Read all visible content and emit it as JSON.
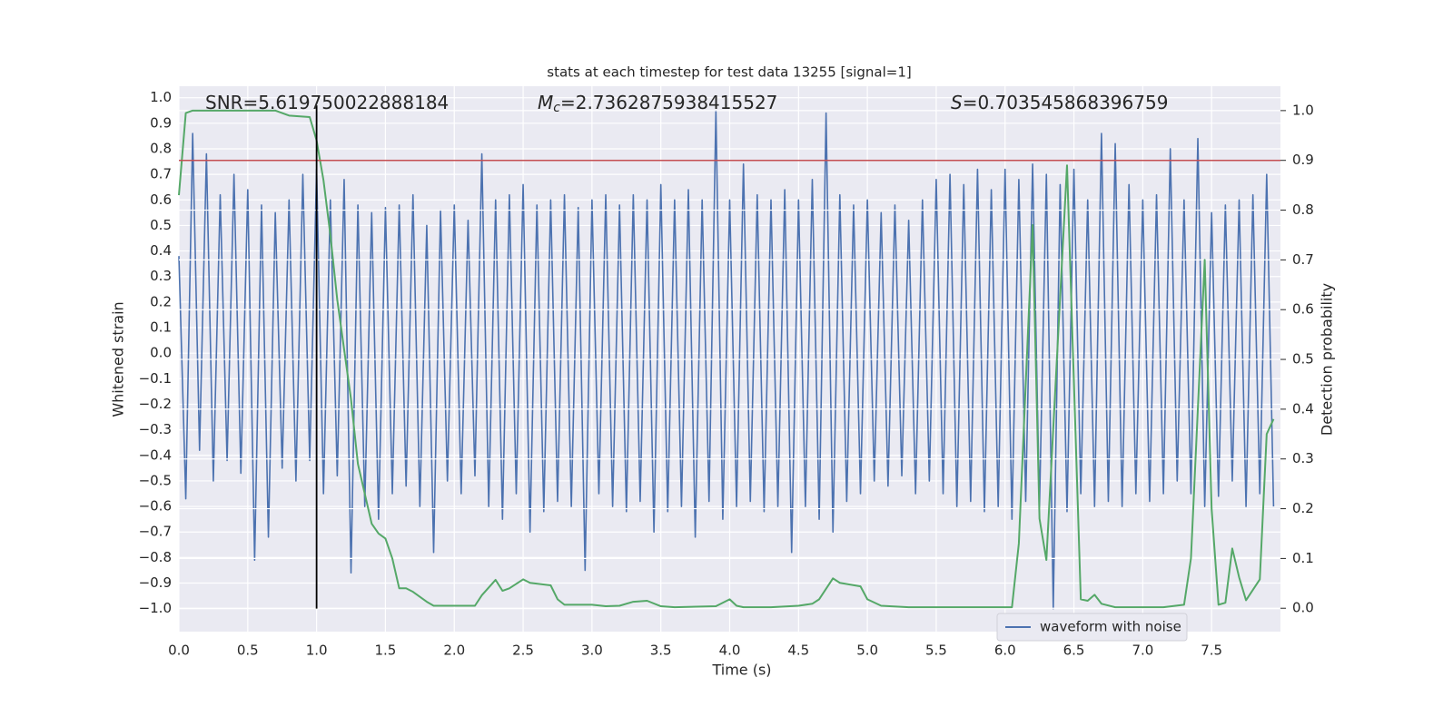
{
  "chart_data": {
    "type": "line",
    "title": "stats at each timestep for test data 13255 [signal=1]",
    "x_label": "Time (s)",
    "y_label": "Whitened strain",
    "y2_label": "Detection probability",
    "annotations": [
      {
        "rest": "SNR=5.619750022888184"
      },
      {
        "var": "M",
        "sub": "c",
        "rest": "=2.7362875938415527"
      },
      {
        "var": "S",
        "rest": "=0.703545868396759"
      }
    ],
    "xlim": [
      0,
      8
    ],
    "ylim": [
      -1.09,
      1.045
    ],
    "y2lim": [
      -0.047,
      1.049
    ],
    "xticks": [
      {
        "value": 0,
        "label": "0.0"
      },
      {
        "value": 0.5,
        "label": "0.5"
      },
      {
        "value": 1,
        "label": "1.0"
      },
      {
        "value": 1.5,
        "label": "1.5"
      },
      {
        "value": 2,
        "label": "2.0"
      },
      {
        "value": 2.5,
        "label": "2.5"
      },
      {
        "value": 3,
        "label": "3.0"
      },
      {
        "value": 3.5,
        "label": "3.5"
      },
      {
        "value": 4,
        "label": "4.0"
      },
      {
        "value": 4.5,
        "label": "4.5"
      },
      {
        "value": 5,
        "label": "5.0"
      },
      {
        "value": 5.5,
        "label": "5.5"
      },
      {
        "value": 6,
        "label": "6.0"
      },
      {
        "value": 6.5,
        "label": "6.5"
      },
      {
        "value": 7,
        "label": "7.0"
      },
      {
        "value": 7.5,
        "label": "7.5"
      }
    ],
    "yticks": [
      {
        "value": -1,
        "label": "−1.0"
      },
      {
        "value": -0.9,
        "label": "−0.9"
      },
      {
        "value": -0.8,
        "label": "−0.8"
      },
      {
        "value": -0.7,
        "label": "−0.7"
      },
      {
        "value": -0.6,
        "label": "−0.6"
      },
      {
        "value": -0.5,
        "label": "−0.5"
      },
      {
        "value": -0.4,
        "label": "−0.4"
      },
      {
        "value": -0.3,
        "label": "−0.3"
      },
      {
        "value": -0.2,
        "label": "−0.2"
      },
      {
        "value": -0.1,
        "label": "−0.1"
      },
      {
        "value": 0,
        "label": "0.0"
      },
      {
        "value": 0.1,
        "label": "0.1"
      },
      {
        "value": 0.2,
        "label": "0.2"
      },
      {
        "value": 0.3,
        "label": "0.3"
      },
      {
        "value": 0.4,
        "label": "0.4"
      },
      {
        "value": 0.5,
        "label": "0.5"
      },
      {
        "value": 0.6,
        "label": "0.6"
      },
      {
        "value": 0.7,
        "label": "0.7"
      },
      {
        "value": 0.8,
        "label": "0.8"
      },
      {
        "value": 0.9,
        "label": "0.9"
      },
      {
        "value": 1,
        "label": "1.0"
      }
    ],
    "y2ticks": [
      {
        "value": 0,
        "label": "0.0"
      },
      {
        "value": 0.1,
        "label": "0.1"
      },
      {
        "value": 0.2,
        "label": "0.2"
      },
      {
        "value": 0.3,
        "label": "0.3"
      },
      {
        "value": 0.4,
        "label": "0.4"
      },
      {
        "value": 0.5,
        "label": "0.5"
      },
      {
        "value": 0.6,
        "label": "0.6"
      },
      {
        "value": 0.7,
        "label": "0.7"
      },
      {
        "value": 0.8,
        "label": "0.8"
      },
      {
        "value": 0.9,
        "label": "0.9"
      },
      {
        "value": 1,
        "label": "1.0"
      }
    ],
    "grid": true,
    "legend": "lower right",
    "series": [
      {
        "name": "waveform with noise",
        "color": "#4c72b0",
        "x": [
          0,
          0.05,
          0.1,
          0.15,
          0.2,
          0.25,
          0.3,
          0.35,
          0.4,
          0.45,
          0.5,
          0.55,
          0.6,
          0.65,
          0.7,
          0.75,
          0.8,
          0.85,
          0.9,
          0.95,
          1,
          1.05,
          1.1,
          1.15,
          1.2,
          1.25,
          1.3,
          1.35,
          1.4,
          1.45,
          1.5,
          1.55,
          1.6,
          1.65,
          1.7,
          1.75,
          1.8,
          1.85,
          1.9,
          1.95,
          2,
          2.05,
          2.1,
          2.15,
          2.2,
          2.25,
          2.3,
          2.35,
          2.4,
          2.45,
          2.5,
          2.55,
          2.6,
          2.65,
          2.7,
          2.75,
          2.8,
          2.85,
          2.9,
          2.95,
          3,
          3.05,
          3.1,
          3.15,
          3.2,
          3.25,
          3.3,
          3.35,
          3.4,
          3.45,
          3.5,
          3.55,
          3.6,
          3.65,
          3.7,
          3.75,
          3.8,
          3.85,
          3.9,
          3.95,
          4,
          4.05,
          4.1,
          4.15,
          4.2,
          4.25,
          4.3,
          4.35,
          4.4,
          4.45,
          4.5,
          4.55,
          4.6,
          4.65,
          4.7,
          4.75,
          4.8,
          4.85,
          4.9,
          4.95,
          5,
          5.05,
          5.1,
          5.15,
          5.2,
          5.25,
          5.3,
          5.35,
          5.4,
          5.45,
          5.5,
          5.55,
          5.6,
          5.65,
          5.7,
          5.75,
          5.8,
          5.85,
          5.9,
          5.95,
          6,
          6.05,
          6.1,
          6.15,
          6.2,
          6.25,
          6.3,
          6.35,
          6.4,
          6.45,
          6.5,
          6.55,
          6.6,
          6.65,
          6.7,
          6.75,
          6.8,
          6.85,
          6.9,
          6.95,
          7,
          7.05,
          7.1,
          7.15,
          7.2,
          7.25,
          7.3,
          7.35,
          7.4,
          7.45,
          7.5,
          7.55,
          7.6,
          7.65,
          7.7,
          7.75,
          7.8,
          7.85,
          7.9,
          7.95
        ],
        "values": [
          0.38,
          -0.57,
          0.86,
          -0.38,
          0.78,
          -0.5,
          0.62,
          -0.42,
          0.7,
          -0.47,
          0.64,
          -0.81,
          0.58,
          -0.72,
          0.55,
          -0.45,
          0.6,
          -0.5,
          0.7,
          -0.42,
          0.72,
          -0.55,
          0.6,
          -0.48,
          0.68,
          -0.86,
          0.58,
          -0.6,
          0.55,
          -0.65,
          0.57,
          -0.55,
          0.58,
          -0.52,
          0.62,
          -0.6,
          0.5,
          -0.78,
          0.56,
          -0.5,
          0.58,
          -0.55,
          0.52,
          -0.48,
          0.78,
          -0.6,
          0.6,
          -0.65,
          0.62,
          -0.55,
          0.66,
          -0.7,
          0.58,
          -0.62,
          0.6,
          -0.58,
          0.62,
          -0.6,
          0.57,
          -0.85,
          0.6,
          -0.55,
          0.62,
          -0.6,
          0.58,
          -0.62,
          0.62,
          -0.58,
          0.6,
          -0.7,
          0.66,
          -0.62,
          0.6,
          -0.6,
          0.64,
          -0.72,
          0.6,
          -0.58,
          0.95,
          -0.65,
          0.6,
          -0.6,
          0.74,
          -0.58,
          0.62,
          -0.62,
          0.6,
          -0.6,
          0.64,
          -0.78,
          0.6,
          -0.6,
          0.68,
          -0.65,
          0.94,
          -0.7,
          0.62,
          -0.58,
          0.58,
          -0.55,
          0.6,
          -0.5,
          0.55,
          -0.52,
          0.58,
          -0.48,
          0.52,
          -0.55,
          0.6,
          -0.5,
          0.68,
          -0.55,
          0.7,
          -0.6,
          0.66,
          -0.58,
          0.72,
          -0.62,
          0.64,
          -0.6,
          0.72,
          -0.65,
          0.68,
          -0.58,
          0.74,
          -0.6,
          0.7,
          -1.0,
          0.66,
          -0.62,
          0.72,
          -0.55,
          0.6,
          -0.6,
          0.86,
          -0.58,
          0.82,
          -0.6,
          0.66,
          -0.55,
          0.6,
          -0.58,
          0.62,
          -0.55,
          0.8,
          -0.5,
          0.6,
          -0.55,
          0.84,
          -0.6,
          0.55,
          -0.56,
          0.58,
          -0.5,
          0.6,
          -0.6,
          0.62,
          -0.55,
          0.7,
          -0.6
        ]
      },
      {
        "color": "#55a868",
        "axis": "y2",
        "x": [
          0,
          0.05,
          0.1,
          0.7,
          0.8,
          0.95,
          1.0,
          1.05,
          1.1,
          1.15,
          1.2,
          1.25,
          1.3,
          1.4,
          1.45,
          1.5,
          1.55,
          1.6,
          1.65,
          1.7,
          1.8,
          1.85,
          2.15,
          2.2,
          2.3,
          2.35,
          2.4,
          2.5,
          2.55,
          2.7,
          2.75,
          2.8,
          3.0,
          3.1,
          3.2,
          3.3,
          3.4,
          3.5,
          3.6,
          3.9,
          4.0,
          4.05,
          4.1,
          4.3,
          4.5,
          4.6,
          4.65,
          4.75,
          4.8,
          4.95,
          5.0,
          5.1,
          5.3,
          6.05,
          6.1,
          6.2,
          6.25,
          6.3,
          6.45,
          6.55,
          6.6,
          6.65,
          6.7,
          6.8,
          7.15,
          7.3,
          7.35,
          7.45,
          7.5,
          7.55,
          7.6,
          7.65,
          7.7,
          7.75,
          7.85,
          7.9,
          7.95
        ],
        "values": [
          0.83,
          0.995,
          1.0,
          1.0,
          0.99,
          0.987,
          0.94,
          0.86,
          0.75,
          0.62,
          0.52,
          0.42,
          0.29,
          0.17,
          0.15,
          0.14,
          0.1,
          0.04,
          0.04,
          0.033,
          0.013,
          0.005,
          0.005,
          0.026,
          0.057,
          0.035,
          0.04,
          0.058,
          0.051,
          0.046,
          0.018,
          0.007,
          0.007,
          0.004,
          0.005,
          0.013,
          0.015,
          0.004,
          0.002,
          0.004,
          0.018,
          0.005,
          0.002,
          0.002,
          0.005,
          0.009,
          0.018,
          0.06,
          0.051,
          0.044,
          0.018,
          0.005,
          0.002,
          0.002,
          0.13,
          0.77,
          0.18,
          0.097,
          0.89,
          0.018,
          0.015,
          0.027,
          0.009,
          0.002,
          0.002,
          0.007,
          0.1,
          0.7,
          0.2,
          0.007,
          0.011,
          0.12,
          0.062,
          0.016,
          0.058,
          0.35,
          0.38
        ]
      }
    ],
    "hlines": [
      {
        "axis": "y2",
        "y": 0.9,
        "color": "#c44e52"
      }
    ],
    "vlines": [
      {
        "x": 1.0,
        "ymin": -1.0,
        "ymax": 0.97,
        "color": "#000000"
      }
    ]
  }
}
